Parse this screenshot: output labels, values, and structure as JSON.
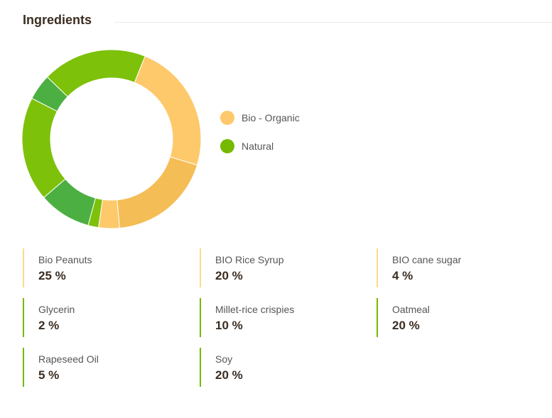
{
  "header": {
    "title": "Ingredients"
  },
  "legend": [
    {
      "label": "Bio - Organic",
      "color": "#fdc96b"
    },
    {
      "label": "Natural",
      "color": "#77b800"
    }
  ],
  "ingredients": [
    {
      "name": "Bio Peanuts",
      "percent": "25 %",
      "type": "bio"
    },
    {
      "name": "BIO Rice Syrup",
      "percent": "20 %",
      "type": "bio"
    },
    {
      "name": "BIO cane sugar",
      "percent": "4 %",
      "type": "bio"
    },
    {
      "name": "Glycerin",
      "percent": "2 %",
      "type": "natural"
    },
    {
      "name": "Millet-rice crispies",
      "percent": "10 %",
      "type": "natural"
    },
    {
      "name": "Oatmeal",
      "percent": "20 %",
      "type": "natural"
    },
    {
      "name": "Rapeseed Oil",
      "percent": "5 %",
      "type": "natural"
    },
    {
      "name": "Soy",
      "percent": "20 %",
      "type": "natural"
    }
  ],
  "chart_data": {
    "type": "pie",
    "title": "",
    "slices": [
      {
        "name": "Bio Peanuts",
        "value": 25,
        "color": "#fdc96b"
      },
      {
        "name": "BIO Rice Syrup",
        "value": 20,
        "color": "#f4bd55"
      },
      {
        "name": "BIO cane sugar",
        "value": 4,
        "color": "#fdc96b"
      },
      {
        "name": "Glycerin",
        "value": 2,
        "color": "#7dc10a"
      },
      {
        "name": "Millet-rice crispies",
        "value": 10,
        "color": "#4caf42"
      },
      {
        "name": "Oatmeal",
        "value": 20,
        "color": "#7dc10a"
      },
      {
        "name": "Rapeseed Oil",
        "value": 5,
        "color": "#4caf42"
      },
      {
        "name": "Soy",
        "value": 20,
        "color": "#7dc10a"
      }
    ],
    "start_angle_deg": 22
  },
  "colors": {
    "bio_border": "#fdd98c",
    "natural_border": "#77b800"
  }
}
